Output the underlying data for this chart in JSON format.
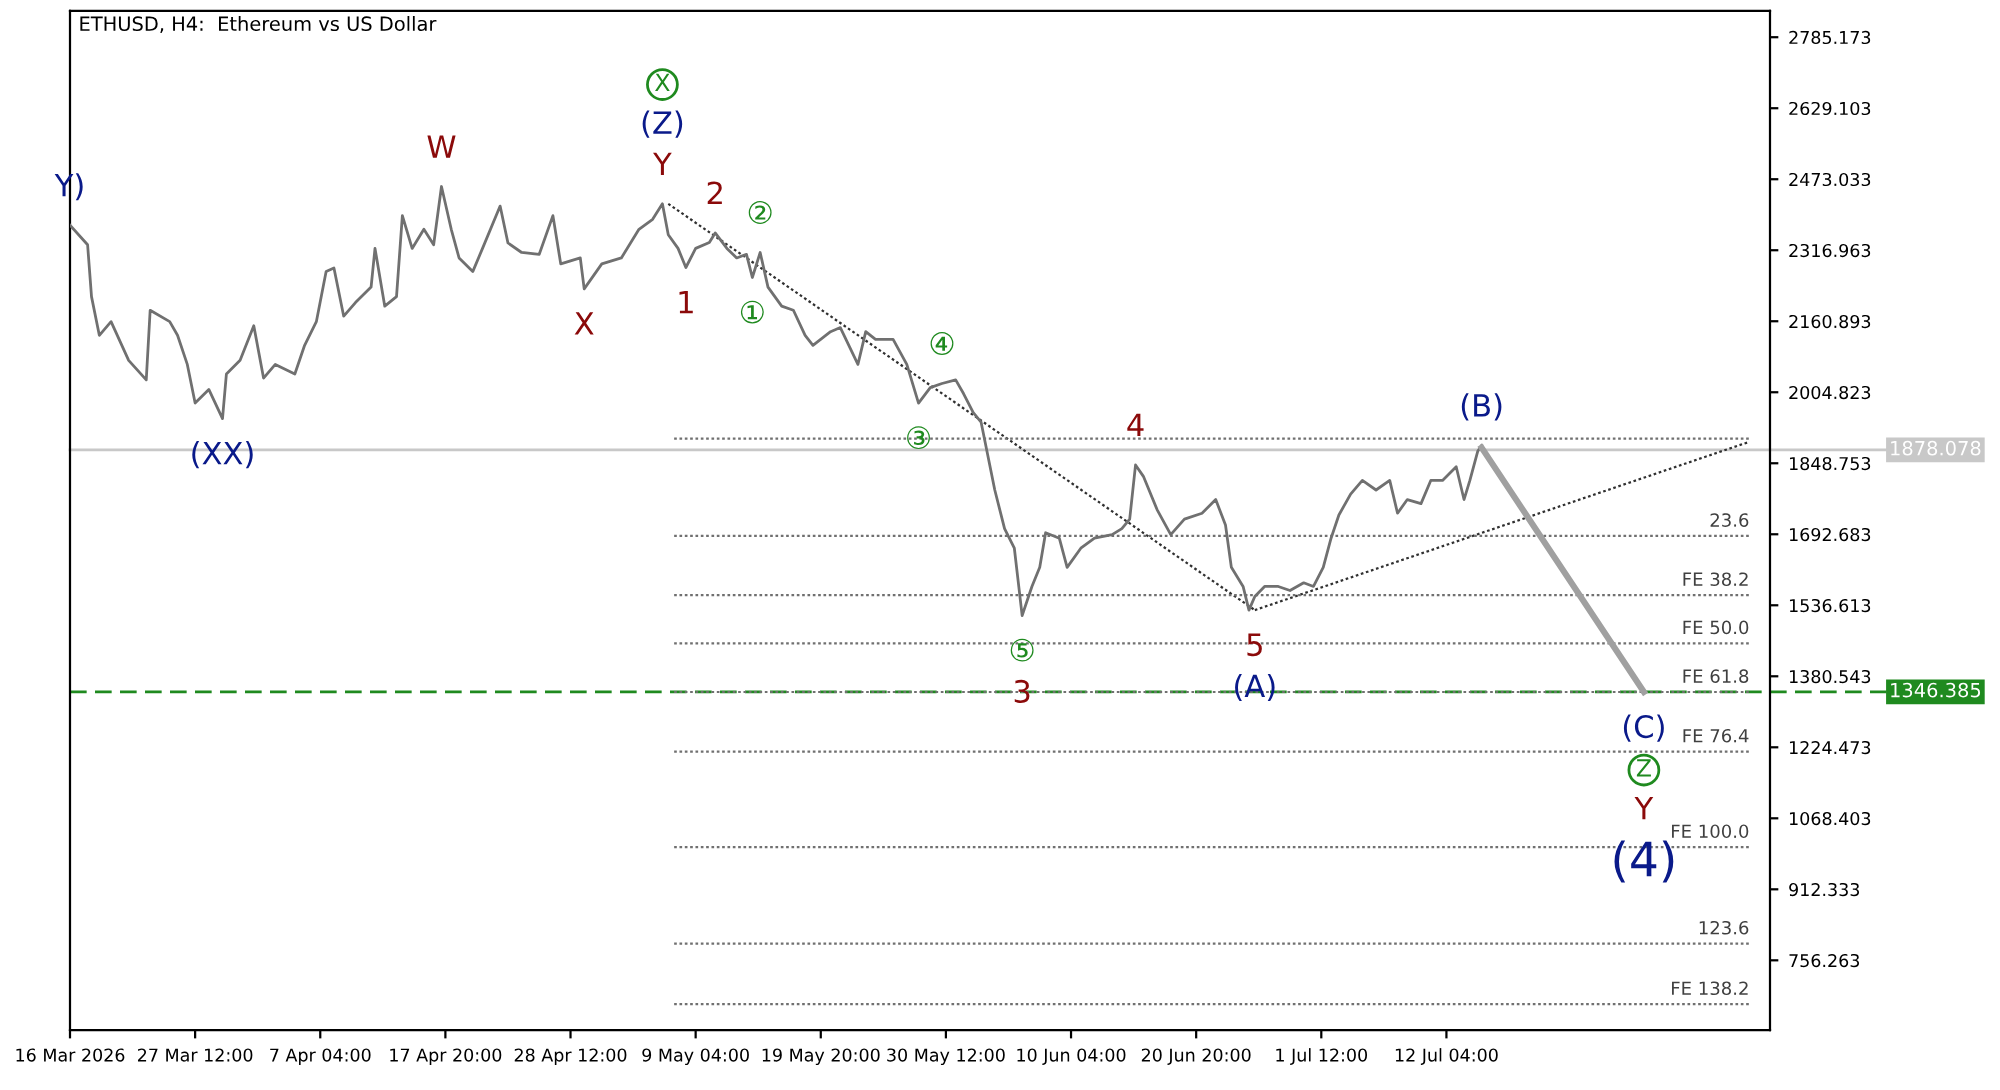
{
  "chart_data": {
    "type": "line",
    "title": "ETHUSD, H4:  Ethereum vs US Dollar",
    "xlim": [
      "2026-03-16T20:00",
      "2026-08-08T18:00"
    ],
    "xticks": [
      {
        "value": "2026-03-16T20:00",
        "label": "16 Mar 2026"
      },
      {
        "value": "2026-03-27T12:00",
        "label": "27 Mar 12:00"
      },
      {
        "value": "2026-04-07T04:00",
        "label": "7 Apr 04:00"
      },
      {
        "value": "2026-04-17T20:00",
        "label": "17 Apr 20:00"
      },
      {
        "value": "2026-04-28T12:00",
        "label": "28 Apr 12:00"
      },
      {
        "value": "2026-05-09T04:00",
        "label": "9 May 04:00"
      },
      {
        "value": "2026-05-19T20:00",
        "label": "19 May 20:00"
      },
      {
        "value": "2026-05-30T12:00",
        "label": "30 May 12:00"
      },
      {
        "value": "2026-06-10T04:00",
        "label": "10 Jun 04:00"
      },
      {
        "value": "2026-06-20T20:00",
        "label": "20 Jun 20:00"
      },
      {
        "value": "2026-07-01T12:00",
        "label": "1 Jul 12:00"
      },
      {
        "value": "2026-07-12T04:00",
        "label": "12 Jul 04:00"
      }
    ],
    "ylim": [
      603,
      2843
    ],
    "yticks": [
      756.263,
      912.333,
      1068.403,
      1224.473,
      1380.543,
      1536.613,
      1692.683,
      1848.753,
      2004.823,
      2160.893,
      2316.963,
      2473.033,
      2629.103,
      2785.173
    ],
    "ref_lines": [
      {
        "axis": "y",
        "value": 1878.078,
        "label": "1878.078",
        "color": "#c8c8c8",
        "line_style": "solid"
      },
      {
        "axis": "y",
        "value": 1346.385,
        "label": "1346.385",
        "color": "#1f8a1f",
        "line_style": "dashed"
      }
    ],
    "series": [
      {
        "color": "#707070",
        "x": [
          "2026-03-16T20:00",
          "2026-03-18T08:00",
          "2026-03-18T16:00",
          "2026-03-19T08:00",
          "2026-03-20T08:00",
          "2026-03-21T20:00",
          "2026-03-23T08:00",
          "2026-03-23T16:00",
          "2026-03-25T08:00",
          "2026-03-26T00:00",
          "2026-03-26T20:00",
          "2026-03-27T12:00",
          "2026-03-28T16:00",
          "2026-03-29T20:00",
          "2026-03-30T04:00",
          "2026-03-31T08:00",
          "2026-04-01T12:00",
          "2026-04-02T08:00",
          "2026-04-03T08:00",
          "2026-04-05T00:00",
          "2026-04-05T20:00",
          "2026-04-06T20:00",
          "2026-04-07T16:00",
          "2026-04-08T08:00",
          "2026-04-09T04:00",
          "2026-04-10T04:00",
          "2026-04-11T12:00",
          "2026-04-11T20:00",
          "2026-04-12T16:00",
          "2026-04-13T16:00",
          "2026-04-14T04:00",
          "2026-04-15T00:00",
          "2026-04-16T00:00",
          "2026-04-16T20:00",
          "2026-04-17T12:00",
          "2026-04-18T08:00",
          "2026-04-19T00:00",
          "2026-04-20T04:00",
          "2026-04-21T00:00",
          "2026-04-22T12:00",
          "2026-04-23T04:00",
          "2026-04-24T08:00",
          "2026-04-25T20:00",
          "2026-04-27T00:00",
          "2026-04-27T16:00",
          "2026-04-29T08:00",
          "2026-04-29T16:00",
          "2026-05-01T04:00",
          "2026-05-02T20:00",
          "2026-05-04T08:00",
          "2026-05-05T12:00",
          "2026-05-06T08:00",
          "2026-05-06T20:00",
          "2026-05-07T16:00",
          "2026-05-08T08:00",
          "2026-05-09T04:00",
          "2026-05-10T08:00",
          "2026-05-10T20:00",
          "2026-05-11T20:00",
          "2026-05-12T16:00",
          "2026-05-13T12:00",
          "2026-05-14T00:00",
          "2026-05-14T16:00",
          "2026-05-15T08:00",
          "2026-05-16T12:00",
          "2026-05-17T12:00",
          "2026-05-18T12:00",
          "2026-05-19T04:00",
          "2026-05-20T16:00",
          "2026-05-21T12:00",
          "2026-05-23T00:00",
          "2026-05-23T16:00",
          "2026-05-24T12:00",
          "2026-05-26T00:00",
          "2026-05-27T04:00",
          "2026-05-28T04:00",
          "2026-05-29T04:00",
          "2026-05-30T04:00",
          "2026-05-31T08:00",
          "2026-06-01T00:00",
          "2026-06-01T20:00",
          "2026-06-02T12:00",
          "2026-06-03T00:00",
          "2026-06-03T16:00",
          "2026-06-04T12:00",
          "2026-06-05T08:00",
          "2026-06-06T00:00",
          "2026-06-06T20:00",
          "2026-06-07T12:00",
          "2026-06-08T00:00",
          "2026-06-09T04:00",
          "2026-06-09T20:00",
          "2026-06-11T00:00",
          "2026-06-12T04:00",
          "2026-06-13T16:00",
          "2026-06-14T12:00",
          "2026-06-15T04:00",
          "2026-06-15T16:00",
          "2026-06-16T08:00",
          "2026-06-17T12:00",
          "2026-06-18T16:00",
          "2026-06-19T20:00",
          "2026-06-21T08:00",
          "2026-06-22T12:00",
          "2026-06-23T08:00",
          "2026-06-23T20:00",
          "2026-06-24T20:00",
          "2026-06-25T08:00",
          "2026-06-25T20:00",
          "2026-06-26T16:00",
          "2026-06-27T20:00",
          "2026-06-28T20:00",
          "2026-06-30T00:00",
          "2026-06-30T20:00",
          "2026-07-01T16:00",
          "2026-07-02T08:00",
          "2026-07-03T00:00",
          "2026-07-04T00:00",
          "2026-07-05T00:00",
          "2026-07-06T04:00",
          "2026-07-07T08:00",
          "2026-07-08T00:00",
          "2026-07-08T20:00",
          "2026-07-10T00:00",
          "2026-07-10T20:00",
          "2026-07-11T20:00",
          "2026-07-13T00:00",
          "2026-07-13T16:00",
          "2026-07-14T04:00",
          "2026-07-14T20:00",
          "2026-07-15T04:00"
        ],
        "values": [
          2372,
          2329,
          2215,
          2130,
          2160,
          2075,
          2032,
          2185,
          2160,
          2130,
          2066,
          1981,
          2011,
          1947,
          2045,
          2075,
          2151,
          2036,
          2066,
          2045,
          2108,
          2160,
          2270,
          2278,
          2172,
          2202,
          2236,
          2321,
          2194,
          2215,
          2393,
          2321,
          2363,
          2329,
          2457,
          2363,
          2300,
          2270,
          2321,
          2414,
          2333,
          2312,
          2308,
          2393,
          2287,
          2300,
          2232,
          2287,
          2300,
          2363,
          2385,
          2419,
          2351,
          2321,
          2279,
          2321,
          2334,
          2355,
          2321,
          2300,
          2308,
          2257,
          2312,
          2236,
          2194,
          2185,
          2130,
          2108,
          2138,
          2147,
          2066,
          2138,
          2121,
          2121,
          2066,
          1981,
          2015,
          2024,
          2032,
          2002,
          1960,
          1939,
          1875,
          1790,
          1705,
          1662,
          1514,
          1578,
          1620,
          1696,
          1684,
          1620,
          1662,
          1684,
          1692,
          1705,
          1726,
          1845,
          1820,
          1747,
          1692,
          1726,
          1739,
          1769,
          1713,
          1620,
          1578,
          1526,
          1556,
          1578,
          1578,
          1569,
          1586,
          1578,
          1620,
          1684,
          1735,
          1781,
          1811,
          1790,
          1811,
          1739,
          1769,
          1760,
          1811,
          1811,
          1841,
          1769,
          1811,
          1875,
          1888
        ]
      },
      {
        "type": "line",
        "color": "#a0a0a0",
        "x": [
          "2026-07-15T04:00",
          "2026-07-29T00:00"
        ],
        "values": [
          1883,
          1346
        ]
      },
      {
        "type": "line",
        "color": "#303030",
        "line_style": "dotted",
        "x": [
          "2026-05-06T20:00",
          "2026-06-25T20:00"
        ],
        "values": [
          2419,
          1526
        ]
      },
      {
        "type": "line",
        "color": "#303030",
        "line_style": "dotted",
        "x": [
          "2026-06-25T20:00",
          "2026-08-07T00:00"
        ],
        "values": [
          1526,
          1896
        ]
      },
      {
        "type": "line",
        "color": "#707070",
        "line_style": "dotted",
        "x": [
          "2026-05-07T08:00",
          "2026-08-07T00:00"
        ],
        "values": [
          1903,
          1903
        ]
      },
      {
        "type": "line",
        "color": "#707070",
        "line_style": "dotted",
        "name": "23.6",
        "x": [
          "2026-05-07T08:00",
          "2026-08-07T00:00"
        ],
        "values": [
          1689,
          1689
        ]
      },
      {
        "type": "line",
        "color": "#707070",
        "line_style": "dotted",
        "name": "FE 38.2",
        "x": [
          "2026-05-07T08:00",
          "2026-08-07T00:00"
        ],
        "values": [
          1559,
          1559
        ]
      },
      {
        "type": "line",
        "color": "#707070",
        "line_style": "dotted",
        "name": "FE 50.0",
        "x": [
          "2026-05-07T08:00",
          "2026-08-07T00:00"
        ],
        "values": [
          1453,
          1453
        ]
      },
      {
        "type": "line",
        "color": "#707070",
        "line_style": "dotted",
        "name": "FE 61.8",
        "x": [
          "2026-05-07T08:00",
          "2026-08-07T00:00"
        ],
        "values": [
          1346,
          1346
        ]
      },
      {
        "type": "line",
        "color": "#707070",
        "line_style": "dotted",
        "name": "FE 76.4",
        "x": [
          "2026-05-07T08:00",
          "2026-08-07T00:00"
        ],
        "values": [
          1215,
          1215
        ]
      },
      {
        "type": "line",
        "color": "#707070",
        "line_style": "dotted",
        "name": "FE 100.0",
        "x": [
          "2026-05-07T08:00",
          "2026-08-07T00:00"
        ],
        "values": [
          1005,
          1005
        ]
      },
      {
        "type": "line",
        "color": "#707070",
        "line_style": "dotted",
        "name": "123.6",
        "x": [
          "2026-05-07T08:00",
          "2026-08-07T00:00"
        ],
        "values": [
          793,
          793
        ]
      },
      {
        "type": "line",
        "color": "#707070",
        "line_style": "dotted",
        "name": "FE 138.2",
        "x": [
          "2026-05-07T08:00",
          "2026-08-07T00:00"
        ],
        "values": [
          660,
          660
        ]
      }
    ],
    "annotations": [
      {
        "text": "Y)",
        "x": "2026-03-16T20:00",
        "y": 2372
      },
      {
        "text": "(XX)",
        "x": "2026-03-29T20:00",
        "y": 1947
      },
      {
        "text": "W",
        "x": "2026-04-17T12:00",
        "y": 2457
      },
      {
        "text": "X",
        "x": "2026-04-29T16:00",
        "y": 2232
      },
      {
        "text": "Y",
        "x": "2026-05-06T08:00",
        "y": 2419
      },
      {
        "text": "(Z)",
        "x": "2026-05-06T08:00",
        "y": 2419
      },
      "X",
      {
        "text": "1",
        "x": "2026-05-08T08:00",
        "y": 2279
      },
      {
        "text": "2",
        "x": "2026-05-10T20:00",
        "y": 2355
      },
      {
        "text": "①",
        "x": "2026-05-14T00:00",
        "y": 2257
      },
      {
        "text": "②",
        "x": "2026-05-14T16:00",
        "y": 2312
      },
      {
        "text": "③",
        "x": "2026-05-28T04:00",
        "y": 1981
      },
      {
        "text": "④",
        "x": "2026-05-30T04:00",
        "y": 2024
      },
      {
        "text": "⑤",
        "x": "2026-06-06T00:00",
        "y": 1514
      },
      {
        "text": "3",
        "x": "2026-06-06T00:00",
        "y": 1514
      },
      {
        "text": "4",
        "x": "2026-06-15T16:00",
        "y": 1845
      },
      {
        "text": "5",
        "x": "2026-06-25T20:00",
        "y": 1526
      },
      {
        "text": "(A)",
        "x": "2026-06-25T20:00",
        "y": 1526
      },
      {
        "text": "(B)",
        "x": "2026-07-15T04:00",
        "y": 1888
      },
      {
        "text": "(C)",
        "x": "2026-07-29T00:00",
        "y": 1346
      },
      {
        "text": "Z",
        "x": "2026-07-29T00:00",
        "y": 1346
      },
      "Y",
      "(4)"
    ]
  }
}
